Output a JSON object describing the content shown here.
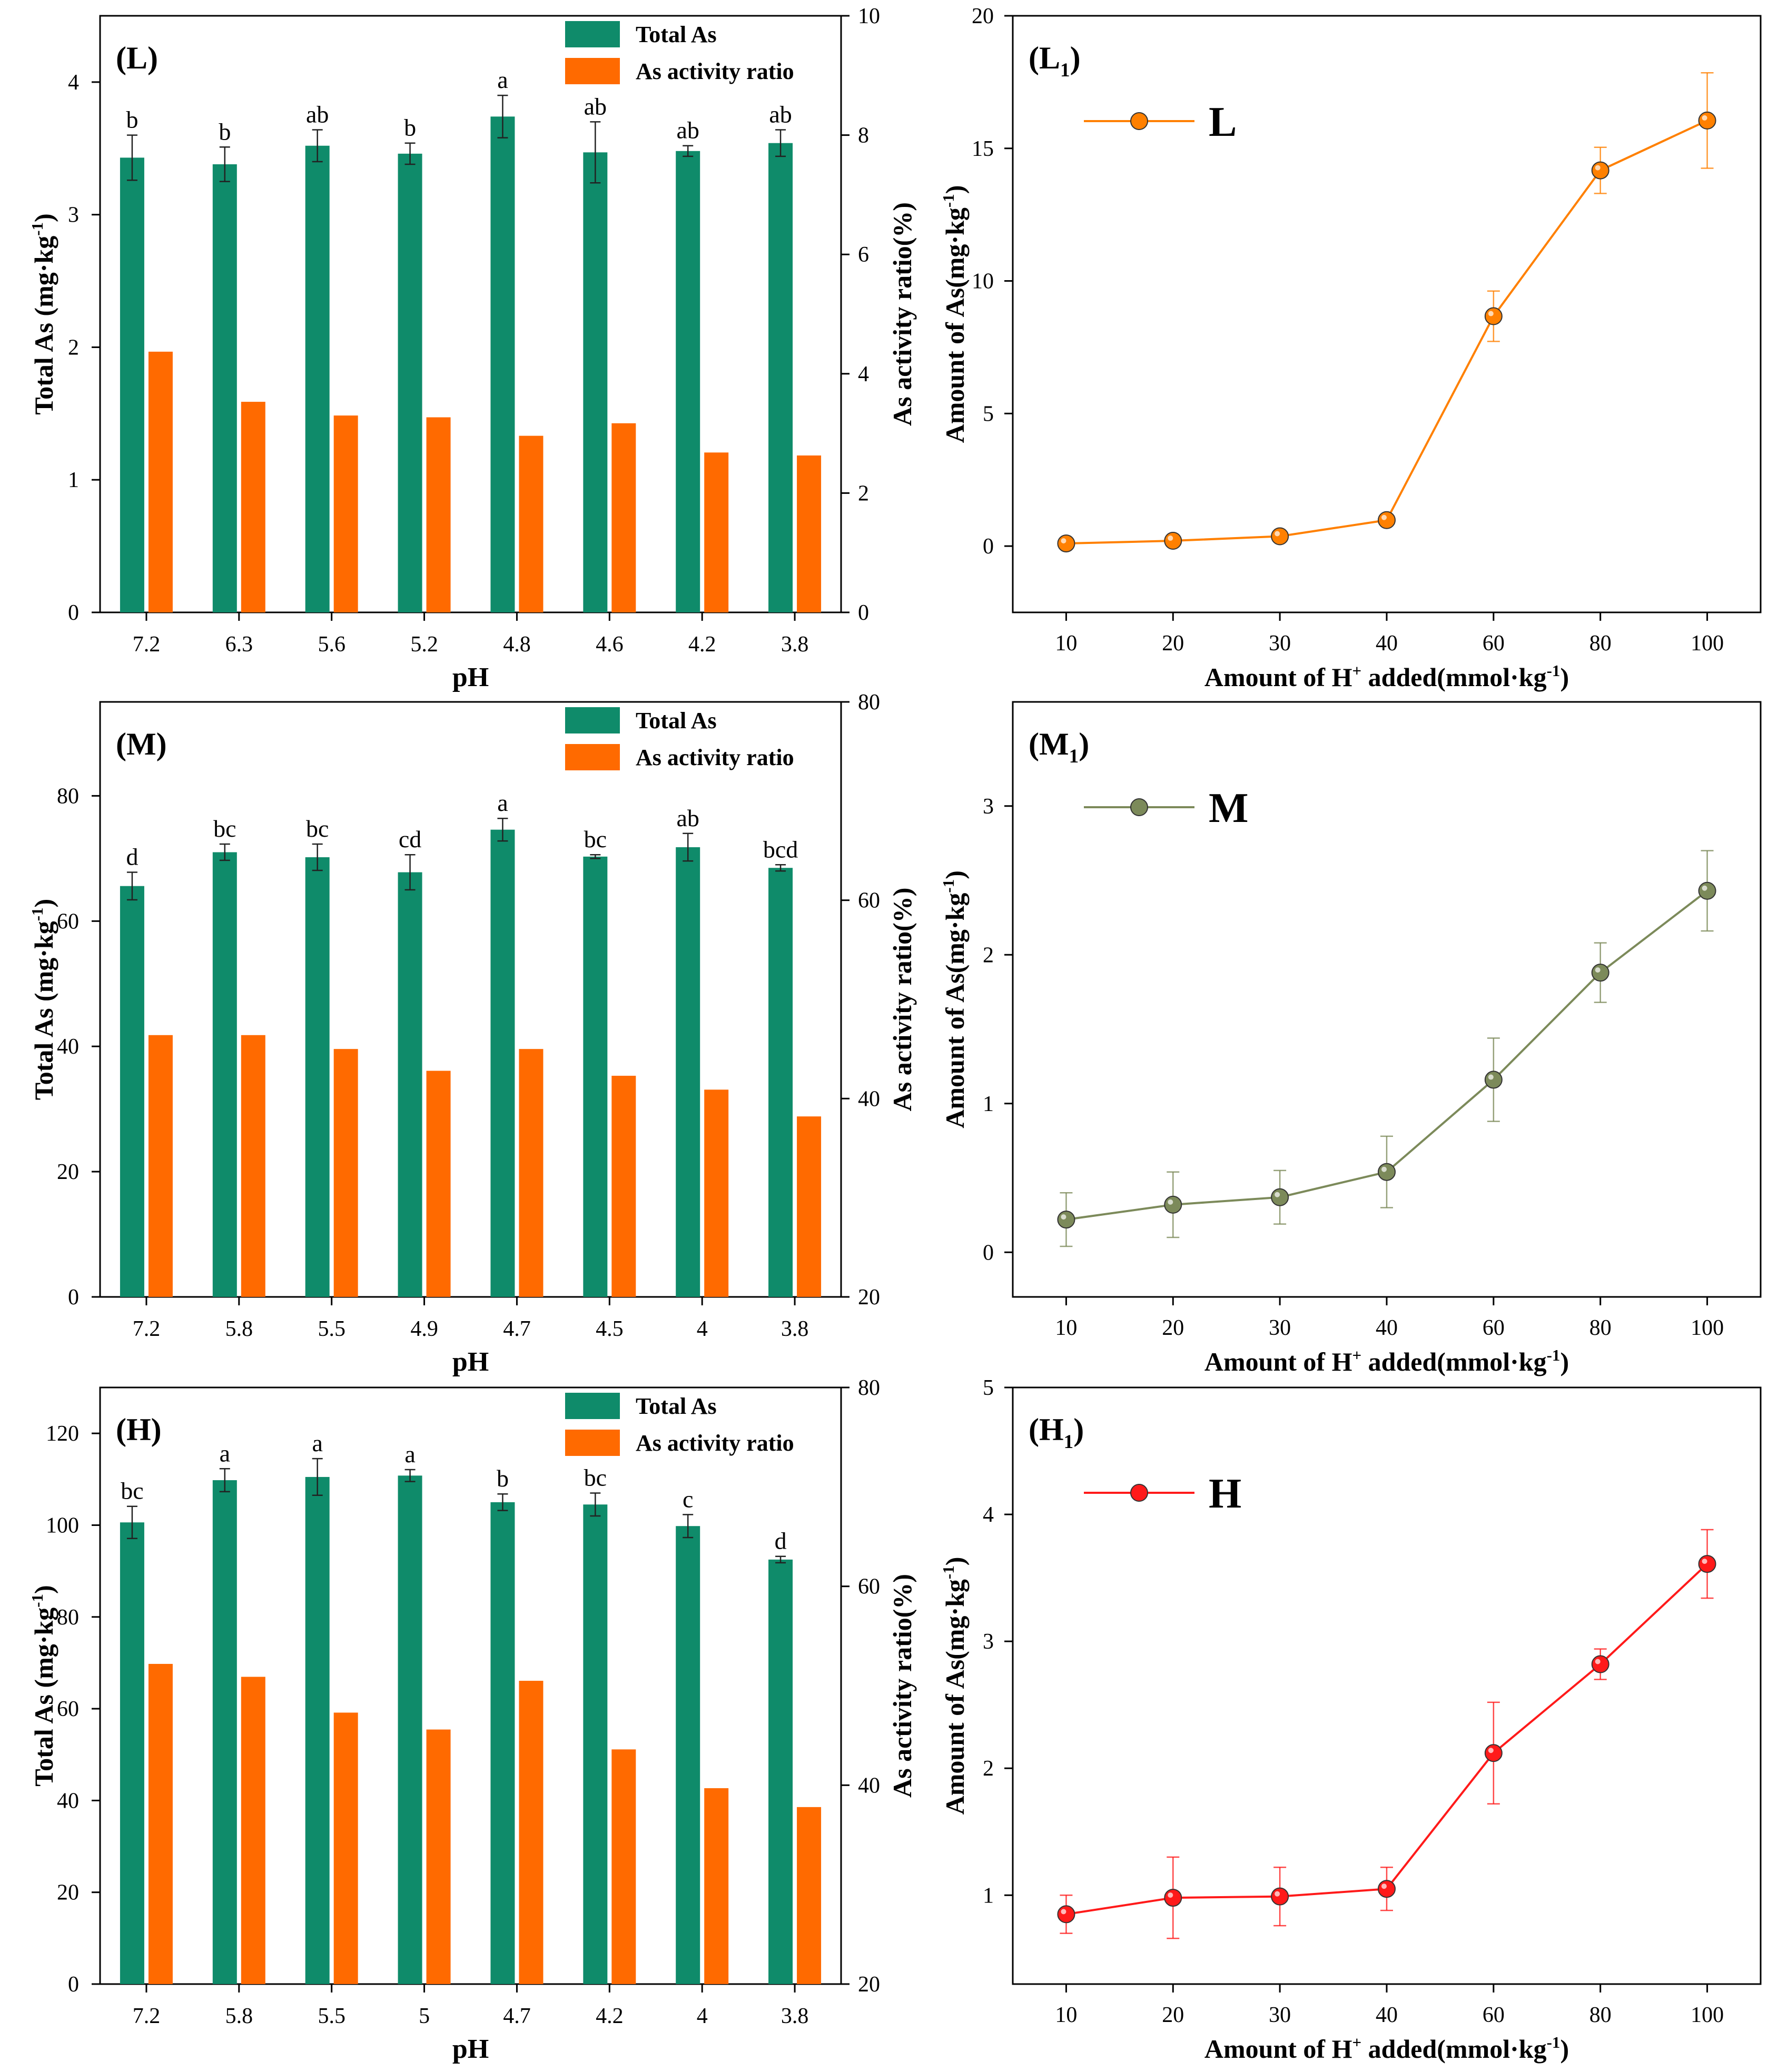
{
  "chart_data": [
    {
      "id": "L",
      "type": "bar",
      "panel_label": "(L)",
      "xlabel": "pH",
      "ylabel_left": "Total As (mg·kg",
      "ylabel_left_sup": "-1",
      "ylabel_left_end": ")",
      "ylabel_right": "As activity ratio(%)",
      "categories": [
        "7.2",
        "6.3",
        "5.6",
        "5.2",
        "4.8",
        "4.6",
        "4.2",
        "3.8"
      ],
      "left_ylim": [
        0,
        4.5
      ],
      "left_ticks": [
        "0",
        "1",
        "2",
        "3",
        "4"
      ],
      "left_tick_values": [
        0,
        1,
        2,
        3,
        4
      ],
      "right_ylim": [
        0,
        10
      ],
      "right_ticks": [
        "0",
        "2",
        "4",
        "6",
        "8",
        "10"
      ],
      "right_tick_values": [
        0,
        2,
        4,
        6,
        8,
        10
      ],
      "series": [
        {
          "name": "Total As",
          "color": "#0f8b6a",
          "axis": "left",
          "values": [
            3.43,
            3.38,
            3.52,
            3.46,
            3.74,
            3.47,
            3.48,
            3.54
          ],
          "errors": [
            0.17,
            0.13,
            0.12,
            0.08,
            0.16,
            0.23,
            0.04,
            0.1
          ],
          "letters": [
            "b",
            "b",
            "ab",
            "b",
            "a",
            "ab",
            "ab",
            "ab"
          ]
        },
        {
          "name": "As activity ratio",
          "color": "#ff6a00",
          "axis": "right",
          "values": [
            4.37,
            3.53,
            3.3,
            3.27,
            2.96,
            3.17,
            2.68,
            2.63
          ]
        }
      ],
      "legend": [
        "Total As",
        "As activity ratio"
      ]
    },
    {
      "id": "L1",
      "type": "line",
      "panel_label": "(L",
      "panel_label_sub": "1",
      "panel_label_end": ")",
      "legend_label": "L",
      "color": "#ff8000",
      "xlabel": "Amount of H",
      "xlabel_sup": "+",
      "xlabel_mid": " added(mmol·kg",
      "xlabel_sup2": "-1",
      "xlabel_end": ")",
      "ylabel": "Amount of As(mg·kg",
      "ylabel_sup": "-1",
      "ylabel_end": ")",
      "x": [
        10,
        20,
        30,
        40,
        60,
        80,
        100
      ],
      "y": [
        0.1,
        0.2,
        0.37,
        0.98,
        8.67,
        14.17,
        16.05
      ],
      "errors": [
        0.05,
        0.07,
        0.06,
        0.08,
        0.95,
        0.87,
        1.8
      ],
      "ylim": [
        -2.5,
        20
      ],
      "yticks": [
        "0",
        "5",
        "10",
        "15",
        "20"
      ],
      "ytick_values": [
        0,
        5,
        10,
        15,
        20
      ]
    },
    {
      "id": "M",
      "type": "bar",
      "panel_label": "(M)",
      "xlabel": "pH",
      "ylabel_left": "Total As (mg·kg",
      "ylabel_left_sup": "-1",
      "ylabel_left_end": ")",
      "ylabel_right": "As activity ratio(%)",
      "categories": [
        "7.2",
        "5.8",
        "5.5",
        "4.9",
        "4.7",
        "4.5",
        "4",
        "3.8"
      ],
      "left_ylim": [
        0,
        95
      ],
      "left_ticks": [
        "0",
        "20",
        "40",
        "60",
        "80"
      ],
      "left_tick_values": [
        0,
        20,
        40,
        60,
        80
      ],
      "right_ylim": [
        20,
        80
      ],
      "right_ticks": [
        "20",
        "40",
        "60",
        "80"
      ],
      "right_tick_values": [
        20,
        40,
        60,
        80
      ],
      "series": [
        {
          "name": "Total As",
          "color": "#0f8b6a",
          "axis": "left",
          "values": [
            65.6,
            71.0,
            70.2,
            67.8,
            74.6,
            70.3,
            71.8,
            68.5
          ],
          "errors": [
            2.2,
            1.3,
            2.1,
            2.8,
            1.8,
            0.3,
            2.2,
            0.5
          ],
          "letters": [
            "d",
            "bc",
            "bc",
            "cd",
            "a",
            "bc",
            "ab",
            "bcd"
          ]
        },
        {
          "name": "As activity ratio",
          "color": "#ff6a00",
          "axis": "right",
          "values": [
            46.4,
            46.4,
            45.0,
            42.8,
            45.0,
            42.3,
            40.9,
            38.2
          ]
        }
      ],
      "legend": [
        "Total As",
        "As activity ratio"
      ]
    },
    {
      "id": "M1",
      "type": "line",
      "panel_label": "(M",
      "panel_label_sub": "1",
      "panel_label_end": ")",
      "legend_label": "M",
      "color": "#7c8a5a",
      "xlabel": "Amount of H",
      "xlabel_sup": "+",
      "xlabel_mid": " added(mmol·kg",
      "xlabel_sup2": "-1",
      "xlabel_end": ")",
      "ylabel": "Amount of As(mg·kg",
      "ylabel_sup": "-1",
      "ylabel_end": ")",
      "x": [
        10,
        20,
        30,
        40,
        60,
        80,
        100
      ],
      "y": [
        0.22,
        0.32,
        0.37,
        0.54,
        1.16,
        1.88,
        2.43
      ],
      "errors": [
        0.18,
        0.22,
        0.18,
        0.24,
        0.28,
        0.2,
        0.27
      ],
      "ylim": [
        -0.3,
        3.7
      ],
      "yticks": [
        "0",
        "1",
        "2",
        "3"
      ],
      "ytick_values": [
        0,
        1,
        2,
        3
      ]
    },
    {
      "id": "H",
      "type": "bar",
      "panel_label": "(H)",
      "xlabel": "pH",
      "ylabel_left": "Total As (mg·kg",
      "ylabel_left_sup": "-1",
      "ylabel_left_end": ")",
      "ylabel_right": "As activity ratio(%)",
      "categories": [
        "7.2",
        "5.8",
        "5.5",
        "5",
        "4.7",
        "4.2",
        "4",
        "3.8"
      ],
      "left_ylim": [
        0,
        130
      ],
      "left_ticks": [
        "0",
        "20",
        "40",
        "60",
        "80",
        "100",
        "120"
      ],
      "left_tick_values": [
        0,
        20,
        40,
        60,
        80,
        100,
        120
      ],
      "right_ylim": [
        20,
        80
      ],
      "right_ticks": [
        "20",
        "40",
        "60",
        "80"
      ],
      "right_tick_values": [
        20,
        40,
        60,
        80
      ],
      "series": [
        {
          "name": "Total As",
          "color": "#0f8b6a",
          "axis": "left",
          "values": [
            100.6,
            109.8,
            110.5,
            110.8,
            105.0,
            104.5,
            99.8,
            92.5
          ],
          "errors": [
            3.5,
            2.5,
            4.0,
            1.3,
            1.8,
            2.5,
            2.5,
            0.7
          ],
          "letters": [
            "bc",
            "a",
            "a",
            "a",
            "b",
            "bc",
            "c",
            "d"
          ]
        },
        {
          "name": "As activity ratio",
          "color": "#ff6a00",
          "axis": "right",
          "values": [
            52.2,
            50.9,
            47.3,
            45.6,
            50.5,
            43.6,
            39.7,
            37.8
          ]
        }
      ],
      "legend": [
        "Total As",
        "As activity ratio"
      ]
    },
    {
      "id": "H1",
      "type": "line",
      "panel_label": "(H",
      "panel_label_sub": "1",
      "panel_label_end": ")",
      "legend_label": "H",
      "color": "#ff1a1a",
      "xlabel": "Amount of H",
      "xlabel_sup": "+",
      "xlabel_mid": " added(mmol·kg",
      "xlabel_sup2": "-1",
      "xlabel_end": ")",
      "ylabel": "Amount of As(mg·kg",
      "ylabel_sup": "-1",
      "ylabel_end": ")",
      "x": [
        10,
        20,
        30,
        40,
        60,
        80,
        100
      ],
      "y": [
        0.85,
        0.98,
        0.99,
        1.05,
        2.12,
        2.82,
        3.61
      ],
      "errors": [
        0.15,
        0.32,
        0.23,
        0.17,
        0.4,
        0.12,
        0.27
      ],
      "ylim": [
        0.3,
        5
      ],
      "yticks": [
        "1",
        "2",
        "3",
        "4",
        "5"
      ],
      "ytick_values": [
        1,
        2,
        3,
        4,
        5
      ]
    }
  ]
}
